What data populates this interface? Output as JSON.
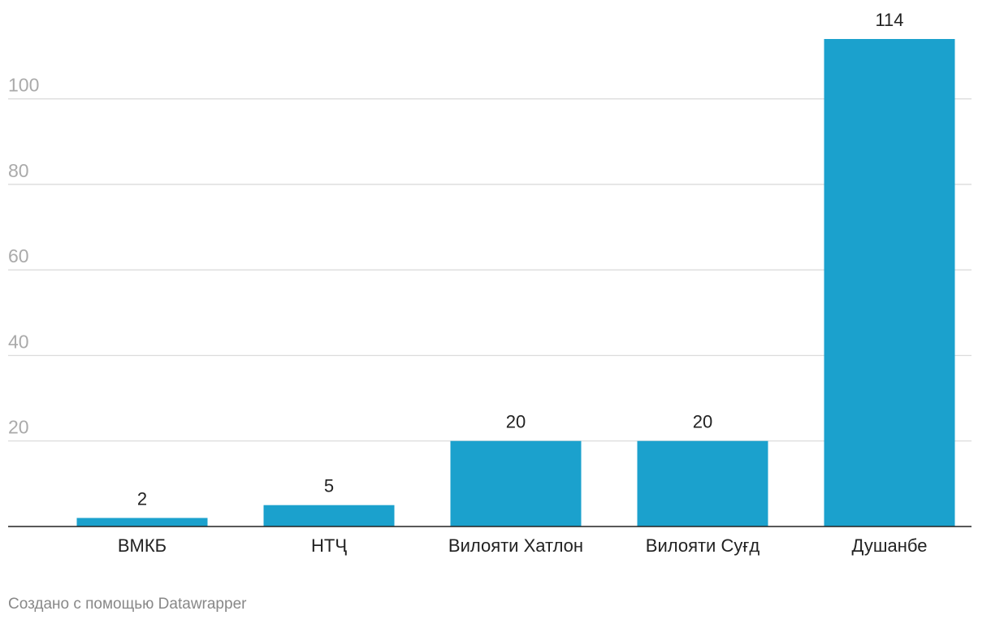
{
  "chart_data": {
    "type": "bar",
    "categories": [
      "ВМКБ",
      "НТҶ",
      "Вилояти Хатлон",
      "Вилояти Суғд",
      "Душанбе"
    ],
    "values": [
      2,
      5,
      20,
      20,
      114
    ],
    "yticks": [
      20,
      40,
      60,
      80,
      100
    ],
    "ylim": [
      0,
      114
    ],
    "grid": true,
    "bar_color": "#1ba1cd",
    "show_value_labels": true
  },
  "footer": {
    "credit": "Создано с помощью Datawrapper"
  }
}
